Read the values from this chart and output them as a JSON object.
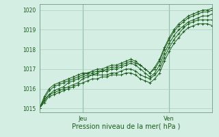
{
  "title": "",
  "xlabel": "Pression niveau de la mer( hPa )",
  "ylabel": "",
  "bg_color": "#d4eee4",
  "grid_color": "#aacfbc",
  "line_color": "#1a5c1a",
  "marker_color": "#1a5c1a",
  "ylim": [
    1014.8,
    1020.3
  ],
  "xlim": [
    0,
    48
  ],
  "yticks": [
    1015,
    1016,
    1017,
    1018,
    1019,
    1020
  ],
  "xtick_positions": [
    12,
    36
  ],
  "xtick_labels": [
    "Jeu",
    "Ven"
  ],
  "series": [
    [
      1015.0,
      1015.4,
      1015.7,
      1015.9,
      1016.0,
      1016.1,
      1016.3,
      1016.4,
      1016.5,
      1016.6,
      1016.7,
      1016.7,
      1016.8,
      1016.9,
      1016.9,
      1017.0,
      1017.0,
      1017.1,
      1017.2,
      1017.3,
      1017.2,
      1017.0,
      1016.8,
      1016.6,
      1016.8,
      1017.2,
      1017.8,
      1018.3,
      1018.7,
      1019.0,
      1019.2,
      1019.4,
      1019.5,
      1019.6,
      1019.7,
      1019.7,
      1019.8
    ],
    [
      1015.0,
      1015.5,
      1015.9,
      1016.1,
      1016.2,
      1016.3,
      1016.4,
      1016.5,
      1016.6,
      1016.7,
      1016.8,
      1016.8,
      1016.9,
      1016.9,
      1017.0,
      1017.1,
      1017.1,
      1017.2,
      1017.3,
      1017.4,
      1017.3,
      1017.2,
      1017.0,
      1016.8,
      1017.0,
      1017.4,
      1018.0,
      1018.5,
      1018.9,
      1019.2,
      1019.4,
      1019.6,
      1019.7,
      1019.8,
      1019.9,
      1019.9,
      1020.0
    ],
    [
      1015.0,
      1015.6,
      1016.0,
      1016.2,
      1016.3,
      1016.4,
      1016.5,
      1016.6,
      1016.7,
      1016.8,
      1016.8,
      1016.9,
      1017.0,
      1017.0,
      1017.1,
      1017.2,
      1017.2,
      1017.3,
      1017.4,
      1017.5,
      1017.4,
      1017.2,
      1017.0,
      1016.8,
      1017.1,
      1017.5,
      1018.1,
      1018.6,
      1019.0,
      1019.3,
      1019.5,
      1019.7,
      1019.8,
      1019.9,
      1020.0,
      1020.0,
      1020.1
    ],
    [
      1015.0,
      1015.4,
      1015.7,
      1015.8,
      1015.9,
      1016.0,
      1016.1,
      1016.2,
      1016.3,
      1016.5,
      1016.6,
      1016.7,
      1016.7,
      1016.7,
      1016.7,
      1016.8,
      1016.8,
      1016.9,
      1017.0,
      1017.0,
      1016.9,
      1016.7,
      1016.6,
      1016.5,
      1016.7,
      1017.0,
      1017.6,
      1018.1,
      1018.5,
      1018.8,
      1019.1,
      1019.3,
      1019.4,
      1019.5,
      1019.5,
      1019.5,
      1019.5
    ],
    [
      1015.0,
      1015.3,
      1015.6,
      1015.7,
      1015.8,
      1015.9,
      1016.0,
      1016.1,
      1016.2,
      1016.3,
      1016.4,
      1016.5,
      1016.5,
      1016.6,
      1016.6,
      1016.7,
      1016.7,
      1016.7,
      1016.8,
      1016.8,
      1016.7,
      1016.5,
      1016.4,
      1016.3,
      1016.5,
      1016.8,
      1017.4,
      1017.9,
      1018.3,
      1018.6,
      1018.9,
      1019.1,
      1019.2,
      1019.3,
      1019.3,
      1019.3,
      1019.2
    ]
  ]
}
